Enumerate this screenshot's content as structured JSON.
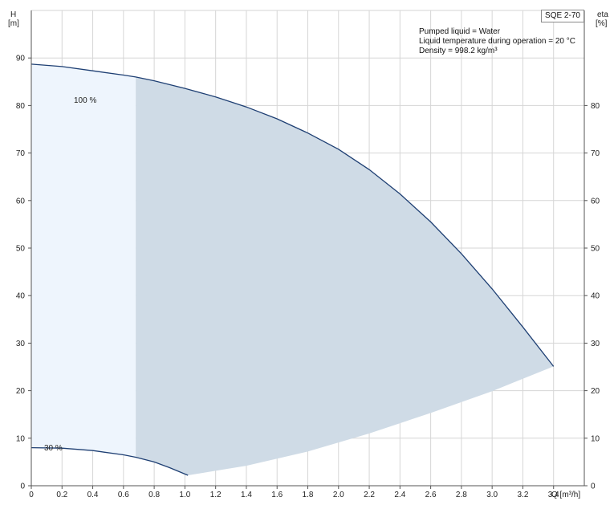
{
  "chart_data": {
    "type": "area",
    "pump_label": "SQE 2-70",
    "info": [
      "Pumped liquid = Water",
      "Liquid temperature during operation = 20 °C",
      "Density = 998.2 kg/m³"
    ],
    "ylabel_left": [
      "H",
      "[m]"
    ],
    "ylabel_right": [
      "eta",
      "[%]"
    ],
    "xlabel": "Q [m³/h]",
    "xlim": [
      0,
      3.6
    ],
    "ylim": [
      0,
      100
    ],
    "grid": true,
    "x_ticks": [
      "0",
      "0.2",
      "0.4",
      "0.6",
      "0.8",
      "1.0",
      "1.2",
      "1.4",
      "1.6",
      "1.8",
      "2.0",
      "2.2",
      "2.4",
      "2.6",
      "2.8",
      "3.0",
      "3.2",
      "3.4"
    ],
    "y_ticks_left": [
      "0",
      "10",
      "20",
      "30",
      "40",
      "50",
      "60",
      "70",
      "80",
      "90"
    ],
    "y_ticks_right": [
      "0",
      "10",
      "20",
      "30",
      "40",
      "50",
      "60",
      "70",
      "80"
    ],
    "speed_labels": [
      "100 %",
      "30 %"
    ],
    "curve_100": {
      "x": [
        0,
        0.2,
        0.4,
        0.6,
        0.68,
        0.8,
        1.0,
        1.2,
        1.4,
        1.6,
        1.8,
        2.0,
        2.2,
        2.4,
        2.6,
        2.8,
        3.0,
        3.2,
        3.4
      ],
      "y": [
        88.7,
        88.2,
        87.3,
        86.4,
        86.0,
        85.2,
        83.6,
        81.8,
        79.7,
        77.2,
        74.2,
        70.8,
        66.5,
        61.4,
        55.5,
        48.8,
        41.4,
        33.4,
        25.1
      ]
    },
    "curve_30": {
      "x": [
        0,
        0.2,
        0.4,
        0.6,
        0.68,
        0.8,
        0.9,
        1.02
      ],
      "y": [
        8.0,
        7.9,
        7.4,
        6.5,
        6.0,
        5.0,
        3.8,
        2.2
      ]
    },
    "min_boundary": {
      "x": [
        1.02,
        1.4,
        1.8,
        2.2,
        2.6,
        3.0,
        3.4
      ],
      "y": [
        2.2,
        4.2,
        7.2,
        11.0,
        15.3,
        19.9,
        25.1
      ]
    },
    "shaded_region_q_start": 0.68,
    "colors": {
      "curve": "#1e3f73",
      "region_dark": "#cfdbe6",
      "region_light": "#eef5fd",
      "grid": "#d6d6d6",
      "axis": "#555555"
    }
  }
}
